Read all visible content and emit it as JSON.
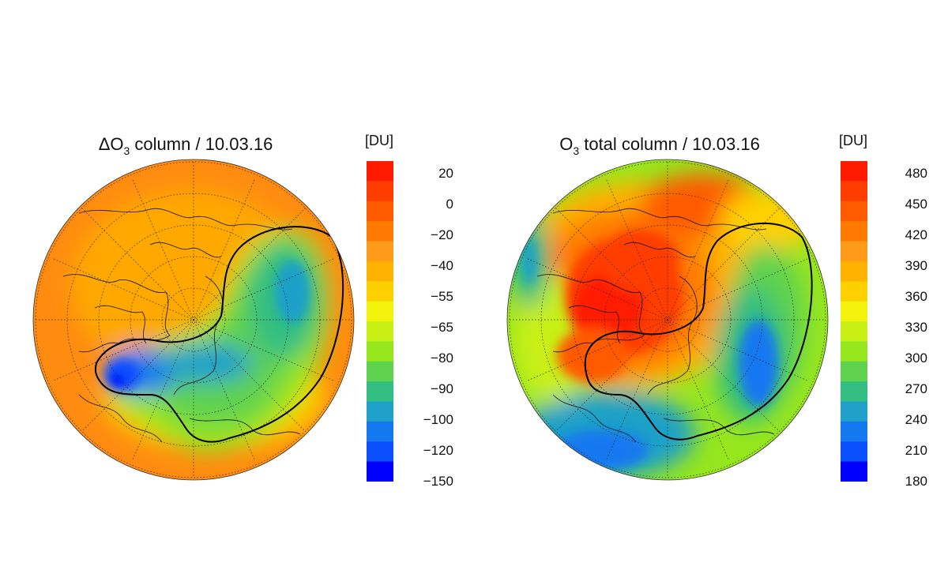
{
  "panels": [
    {
      "title_symbol": "ΔO",
      "title_sub": "3",
      "title_rest": " column / 10.03.16",
      "unit": "[DU]",
      "colorbar_labels": [
        "20",
        "0",
        "−20",
        "−40",
        "−55",
        "−65",
        "−80",
        "−90",
        "−100",
        "−120",
        "−150"
      ],
      "map_type": "north-polar stereographic ozone anomaly field",
      "palette": [
        "#ff1a00",
        "#ff3d00",
        "#ff5a00",
        "#ff7a00",
        "#ff9a1a",
        "#ffb300",
        "#ffd000",
        "#f2f20a",
        "#c8f014",
        "#96e61e",
        "#5fd250",
        "#32be82",
        "#1ea0c8",
        "#1478f0",
        "#0a50ff",
        "#0000ff"
      ]
    },
    {
      "title_symbol": "O",
      "title_sub": "3",
      "title_rest": " total column / 10.03.16",
      "unit": "[DU]",
      "colorbar_labels": [
        "480",
        "450",
        "420",
        "390",
        "360",
        "330",
        "300",
        "270",
        "240",
        "210",
        "180"
      ],
      "map_type": "north-polar stereographic total ozone field",
      "palette": [
        "#ff1a00",
        "#ff3d00",
        "#ff5a00",
        "#ff7a00",
        "#ff9a1a",
        "#ffb300",
        "#ffd000",
        "#f2f20a",
        "#c8f014",
        "#96e61e",
        "#5fd250",
        "#32be82",
        "#1ea0c8",
        "#1478f0",
        "#0a50ff",
        "#0000ff"
      ]
    }
  ]
}
